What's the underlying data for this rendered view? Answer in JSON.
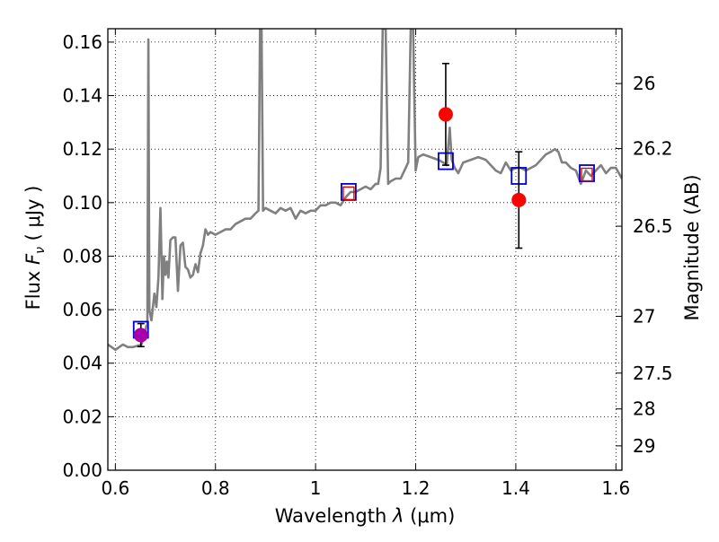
{
  "chart_data": {
    "type": "scatter",
    "xlabel_text": "Wavelength",
    "xlabel_symbol": "λ",
    "xlabel_unit": "(μm)",
    "ylabel_text": "Flux",
    "ylabel_symbol": "F",
    "ylabel_subscript": "ν",
    "ylabel_unit": "( μJy )",
    "y2label": "Magnitude (AB)",
    "xlim": [
      0.585,
      1.612
    ],
    "ylim": [
      0.0,
      0.165
    ],
    "grid": true,
    "x_ticks": [
      0.6,
      0.8,
      1.0,
      1.2,
      1.4,
      1.6
    ],
    "x_tick_labels": [
      "0.6",
      "0.8",
      "1",
      "1.2",
      "1.4",
      "1.6"
    ],
    "y_ticks": [
      0.0,
      0.02,
      0.04,
      0.06,
      0.08,
      0.1,
      0.12,
      0.14,
      0.16
    ],
    "y_tick_labels": [
      "0.00",
      "0.02",
      "0.04",
      "0.06",
      "0.08",
      "0.10",
      "0.12",
      "0.14",
      "0.16"
    ],
    "y2_ticks": [
      {
        "label": "26",
        "flux": 0.1445
      },
      {
        "label": "26.2",
        "flux": 0.1202
      },
      {
        "label": "26.5",
        "flux": 0.0912
      },
      {
        "label": "27",
        "flux": 0.0575
      },
      {
        "label": "27.5",
        "flux": 0.0363
      },
      {
        "label": "28",
        "flux": 0.0229
      },
      {
        "label": "29",
        "flux": 0.0091
      }
    ],
    "series": [
      {
        "kind": "line",
        "color": "#808080",
        "points": [
          [
            0.585,
            0.047
          ],
          [
            0.6,
            0.045
          ],
          [
            0.615,
            0.047
          ],
          [
            0.625,
            0.046
          ],
          [
            0.635,
            0.046
          ],
          [
            0.645,
            0.0465
          ],
          [
            0.652,
            0.047
          ],
          [
            0.658,
            0.05
          ],
          [
            0.662,
            0.054
          ],
          [
            0.664,
            0.0545
          ],
          [
            0.666,
            0.161
          ],
          [
            0.668,
            0.06
          ],
          [
            0.672,
            0.056
          ],
          [
            0.678,
            0.066
          ],
          [
            0.682,
            0.061
          ],
          [
            0.686,
            0.072
          ],
          [
            0.69,
            0.098
          ],
          [
            0.694,
            0.064
          ],
          [
            0.697,
            0.08
          ],
          [
            0.7,
            0.073
          ],
          [
            0.703,
            0.078
          ],
          [
            0.706,
            0.072
          ],
          [
            0.71,
            0.086
          ],
          [
            0.715,
            0.087
          ],
          [
            0.72,
            0.087
          ],
          [
            0.725,
            0.067
          ],
          [
            0.73,
            0.084
          ],
          [
            0.735,
            0.085
          ],
          [
            0.74,
            0.076
          ],
          [
            0.745,
            0.075
          ],
          [
            0.75,
            0.072
          ],
          [
            0.755,
            0.073
          ],
          [
            0.76,
            0.077
          ],
          [
            0.765,
            0.074
          ],
          [
            0.77,
            0.081
          ],
          [
            0.775,
            0.084
          ],
          [
            0.78,
            0.09
          ],
          [
            0.785,
            0.088
          ],
          [
            0.79,
            0.089
          ],
          [
            0.8,
            0.088
          ],
          [
            0.81,
            0.089
          ],
          [
            0.82,
            0.09
          ],
          [
            0.83,
            0.09
          ],
          [
            0.84,
            0.092
          ],
          [
            0.85,
            0.093
          ],
          [
            0.86,
            0.094
          ],
          [
            0.87,
            0.094
          ],
          [
            0.88,
            0.096
          ],
          [
            0.886,
            0.097
          ],
          [
            0.889,
            0.165
          ],
          [
            0.892,
            0.165
          ],
          [
            0.895,
            0.097
          ],
          [
            0.9,
            0.098
          ],
          [
            0.91,
            0.097
          ],
          [
            0.92,
            0.096
          ],
          [
            0.93,
            0.098
          ],
          [
            0.94,
            0.097
          ],
          [
            0.95,
            0.098
          ],
          [
            0.96,
            0.094
          ],
          [
            0.97,
            0.097
          ],
          [
            0.98,
            0.096
          ],
          [
            0.99,
            0.097
          ],
          [
            1.0,
            0.097
          ],
          [
            1.01,
            0.099
          ],
          [
            1.02,
            0.099
          ],
          [
            1.03,
            0.1
          ],
          [
            1.04,
            0.1
          ],
          [
            1.05,
            0.099
          ],
          [
            1.06,
            0.102
          ],
          [
            1.07,
            0.104
          ],
          [
            1.08,
            0.104
          ],
          [
            1.09,
            0.105
          ],
          [
            1.1,
            0.106
          ],
          [
            1.11,
            0.105
          ],
          [
            1.12,
            0.107
          ],
          [
            1.125,
            0.107
          ],
          [
            1.13,
            0.113
          ],
          [
            1.134,
            0.165
          ],
          [
            1.14,
            0.165
          ],
          [
            1.145,
            0.107
          ],
          [
            1.15,
            0.108
          ],
          [
            1.16,
            0.109
          ],
          [
            1.17,
            0.109
          ],
          [
            1.18,
            0.113
          ],
          [
            1.185,
            0.115
          ],
          [
            1.19,
            0.165
          ],
          [
            1.195,
            0.165
          ],
          [
            1.2,
            0.112
          ],
          [
            1.205,
            0.117
          ],
          [
            1.215,
            0.118
          ],
          [
            1.23,
            0.117
          ],
          [
            1.245,
            0.116
          ],
          [
            1.255,
            0.115
          ],
          [
            1.262,
            0.114
          ],
          [
            1.268,
            0.128
          ],
          [
            1.272,
            0.116
          ],
          [
            1.278,
            0.113
          ],
          [
            1.285,
            0.111
          ],
          [
            1.295,
            0.115
          ],
          [
            1.31,
            0.116
          ],
          [
            1.325,
            0.117
          ],
          [
            1.34,
            0.116
          ],
          [
            1.36,
            0.112
          ],
          [
            1.37,
            0.111
          ],
          [
            1.38,
            0.115
          ],
          [
            1.39,
            0.112
          ],
          [
            1.4,
            0.113
          ],
          [
            1.41,
            0.113
          ],
          [
            1.42,
            0.112
          ],
          [
            1.43,
            0.113
          ],
          [
            1.44,
            0.114
          ],
          [
            1.45,
            0.116
          ],
          [
            1.46,
            0.118
          ],
          [
            1.47,
            0.119
          ],
          [
            1.478,
            0.12
          ],
          [
            1.485,
            0.119
          ],
          [
            1.492,
            0.115
          ],
          [
            1.5,
            0.115
          ],
          [
            1.51,
            0.113
          ],
          [
            1.52,
            0.112
          ],
          [
            1.53,
            0.107
          ],
          [
            1.54,
            0.112
          ],
          [
            1.55,
            0.11
          ],
          [
            1.56,
            0.112
          ],
          [
            1.57,
            0.114
          ],
          [
            1.58,
            0.111
          ],
          [
            1.59,
            0.113
          ],
          [
            1.6,
            0.113
          ],
          [
            1.612,
            0.109
          ]
        ]
      },
      {
        "kind": "model_box",
        "color": "#0000cc",
        "points": [
          [
            0.651,
            0.0525
          ],
          [
            1.066,
            0.104
          ],
          [
            1.26,
            0.1155
          ],
          [
            1.406,
            0.11
          ],
          [
            1.542,
            0.111
          ]
        ]
      },
      {
        "kind": "inner_box",
        "color": "#e00000",
        "points": [
          [
            1.066,
            0.1035
          ],
          [
            1.542,
            0.1105
          ]
        ]
      },
      {
        "kind": "errorbar",
        "color": "#000000",
        "points": [
          {
            "x": 0.651,
            "y": 0.0505,
            "yerr": 0.0043
          },
          {
            "x": 1.26,
            "y": 0.133,
            "yerr": 0.019
          },
          {
            "x": 1.406,
            "y": 0.101,
            "yerr": 0.018
          }
        ]
      },
      {
        "kind": "detection",
        "color": "#ff0000",
        "points": [
          [
            1.26,
            0.133
          ],
          [
            1.406,
            0.101
          ]
        ]
      },
      {
        "kind": "detection_blend",
        "color": "#aa00aa",
        "points": [
          [
            0.651,
            0.0505
          ]
        ]
      }
    ]
  }
}
